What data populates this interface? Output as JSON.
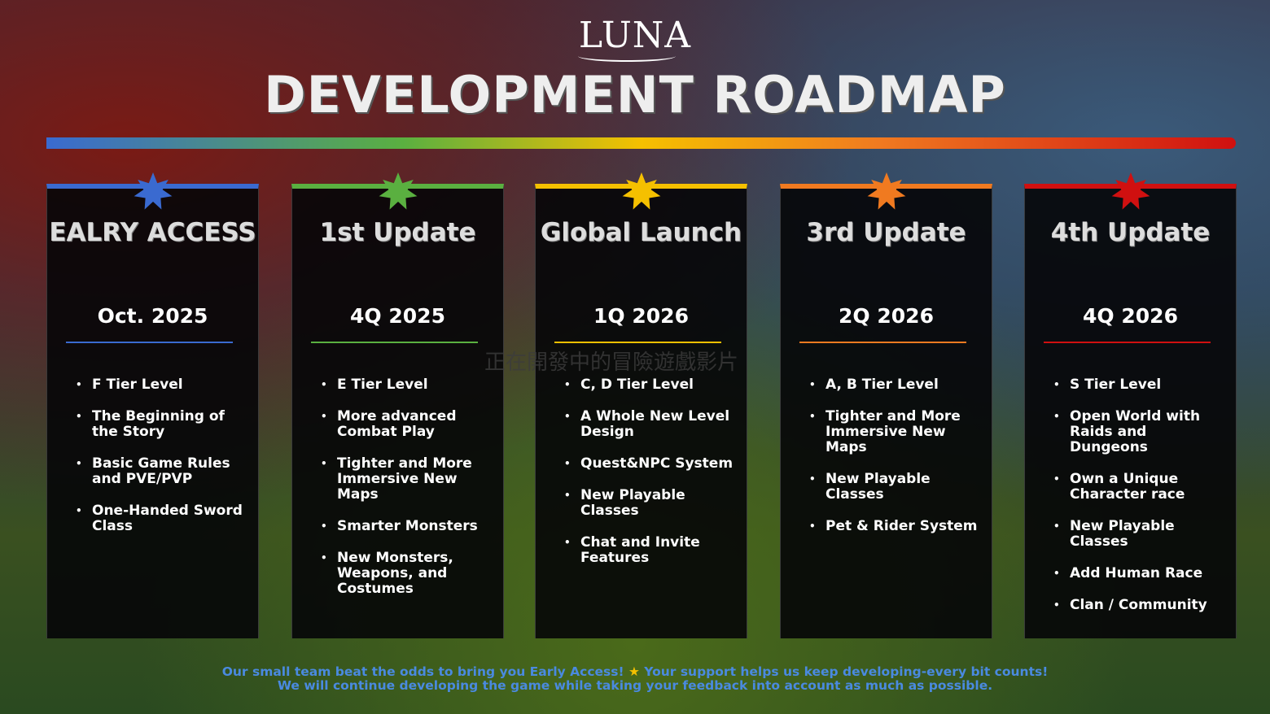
{
  "logo": "LUNA",
  "title": "DEVELOPMENT ROADMAP",
  "overlay_text": "正在開發中的冒險遊戲影片",
  "phases": [
    {
      "name": "EALRY ACCESS",
      "date": "Oct. 2025",
      "color": "#3a6ad0",
      "items": [
        "F Tier Level",
        "The Beginning of the Story",
        "Basic Game Rules and PVE/PVP",
        "One-Handed Sword Class"
      ]
    },
    {
      "name": "1st Update",
      "date": "4Q 2025",
      "color": "#5ab040",
      "items": [
        "E Tier Level",
        "More advanced Combat Play",
        "Tighter and More Immersive New Maps",
        "Smarter Monsters",
        "New Monsters, Weapons, and Costumes"
      ]
    },
    {
      "name": "Global Launch",
      "date": "1Q 2026",
      "color": "#f5c000",
      "items": [
        "C, D Tier Level",
        "A Whole New Level Design",
        "Quest&NPC System",
        "New Playable Classes",
        "Chat and Invite Features"
      ]
    },
    {
      "name": "3rd Update",
      "date": "2Q 2026",
      "color": "#f07a20",
      "items": [
        "A, B Tier Level",
        "Tighter and More Immersive New Maps",
        "New Playable Classes",
        "Pet & Rider System"
      ]
    },
    {
      "name": "4th Update",
      "date": "4Q 2026",
      "color": "#d01010",
      "items": [
        "S Tier Level",
        "Open World with Raids and Dungeons",
        "Own a Unique Character race",
        "New Playable Classes",
        "Add Human Race",
        "Clan / Community"
      ]
    }
  ],
  "footer": {
    "line1a": "Our small team beat the odds to bring you Early Access!",
    "line1b": "Your support helps us keep developing-every bit counts!",
    "line2": "We will continue developing the game while taking your feedback into account as much as possible."
  }
}
